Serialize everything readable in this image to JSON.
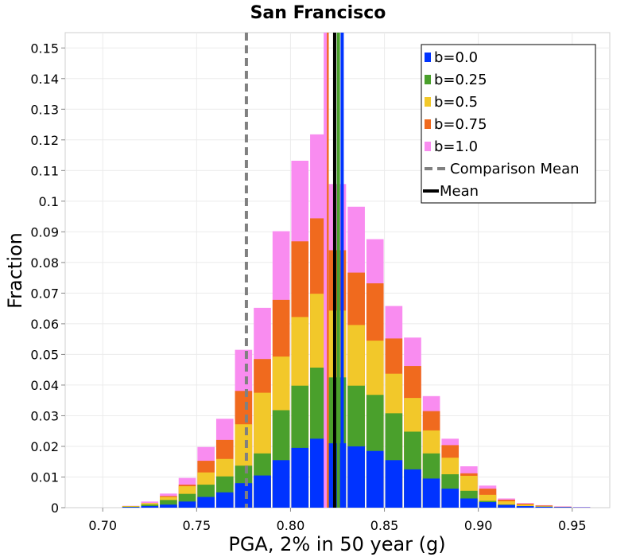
{
  "chart_data": {
    "type": "bar",
    "title": "San Francisco",
    "xlabel": "PGA, 2% in 50 year (g)",
    "ylabel": "Fraction",
    "xlim": [
      0.68,
      0.97
    ],
    "ylim": [
      0,
      0.155
    ],
    "bin_width": 0.01,
    "grid": true,
    "legend_position": "top-right",
    "x_ticks": [
      {
        "value": 0.7,
        "label": "0.70"
      },
      {
        "value": 0.75,
        "label": "0.75"
      },
      {
        "value": 0.8,
        "label": "0.80"
      },
      {
        "value": 0.85,
        "label": "0.85"
      },
      {
        "value": 0.9,
        "label": "0.90"
      },
      {
        "value": 0.95,
        "label": "0.95"
      }
    ],
    "y_ticks": [
      {
        "value": 0,
        "label": "0"
      },
      {
        "value": 0.01,
        "label": "0.01"
      },
      {
        "value": 0.02,
        "label": "0.02"
      },
      {
        "value": 0.03,
        "label": "0.03"
      },
      {
        "value": 0.04,
        "label": "0.04"
      },
      {
        "value": 0.05,
        "label": "0.05"
      },
      {
        "value": 0.06,
        "label": "0.06"
      },
      {
        "value": 0.07,
        "label": "0.07"
      },
      {
        "value": 0.08,
        "label": "0.08"
      },
      {
        "value": 0.09,
        "label": "0.09"
      },
      {
        "value": 0.1,
        "label": "0.1"
      },
      {
        "value": 0.11,
        "label": "0.11"
      },
      {
        "value": 0.12,
        "label": "0.12"
      },
      {
        "value": 0.13,
        "label": "0.13"
      },
      {
        "value": 0.14,
        "label": "0.14"
      },
      {
        "value": 0.15,
        "label": "0.15"
      }
    ],
    "bin_centers": [
      0.705,
      0.715,
      0.725,
      0.735,
      0.745,
      0.755,
      0.765,
      0.775,
      0.785,
      0.795,
      0.805,
      0.815,
      0.825,
      0.835,
      0.845,
      0.855,
      0.865,
      0.875,
      0.885,
      0.895,
      0.905,
      0.915,
      0.925,
      0.935,
      0.945,
      0.955,
      0.965
    ],
    "series": [
      {
        "name": "b=0.0",
        "color": "#0033ff",
        "values": [
          0.0,
          0.0002,
          0.0005,
          0.001,
          0.002,
          0.0035,
          0.005,
          0.008,
          0.0105,
          0.0155,
          0.0195,
          0.0225,
          0.021,
          0.02,
          0.0185,
          0.0155,
          0.0125,
          0.0095,
          0.0062,
          0.003,
          0.0018,
          0.0009,
          0.0005,
          0.0003,
          0.0002,
          0.0001,
          0.0
        ]
      },
      {
        "name": "b=0.25",
        "color": "#4aa02c",
        "values": [
          0.0,
          0.0003,
          0.001,
          0.0025,
          0.0045,
          0.0075,
          0.0102,
          0.0137,
          0.0177,
          0.0318,
          0.0398,
          0.0457,
          0.0425,
          0.0398,
          0.0368,
          0.0308,
          0.0248,
          0.0177,
          0.0109,
          0.0055,
          0.0022,
          0.001,
          0.0005,
          0.0003,
          0.0001,
          0.0,
          0.0
        ]
      },
      {
        "name": "b=0.5",
        "color": "#f2c82a",
        "values": [
          0.0,
          0.0005,
          0.0015,
          0.0035,
          0.007,
          0.0115,
          0.0159,
          0.0272,
          0.0375,
          0.0493,
          0.0622,
          0.0698,
          0.0643,
          0.0596,
          0.0545,
          0.0437,
          0.0358,
          0.0252,
          0.0163,
          0.0104,
          0.0042,
          0.0021,
          0.001,
          0.0005,
          0.0002,
          0.0001,
          0.0
        ]
      },
      {
        "name": "b=0.75",
        "color": "#f06a1e",
        "values": [
          0.0,
          0.0005,
          0.0012,
          0.0038,
          0.0075,
          0.0153,
          0.0221,
          0.0381,
          0.0485,
          0.0678,
          0.0869,
          0.0944,
          0.084,
          0.0767,
          0.0732,
          0.0552,
          0.0462,
          0.0315,
          0.0204,
          0.0112,
          0.0062,
          0.0026,
          0.0013,
          0.0007,
          0.0003,
          0.0001,
          0.0
        ]
      },
      {
        "name": "b=1.0",
        "color": "#f98cf0",
        "values": [
          0.0,
          0.0006,
          0.002,
          0.0046,
          0.0097,
          0.0198,
          0.029,
          0.0515,
          0.0652,
          0.0902,
          0.1132,
          0.1218,
          0.1056,
          0.0982,
          0.0876,
          0.0658,
          0.0555,
          0.0364,
          0.0225,
          0.0135,
          0.0072,
          0.003,
          0.0015,
          0.0008,
          0.0004,
          0.0002,
          0.0
        ]
      }
    ],
    "mean_lines": [
      {
        "series": "b=0.0",
        "x": 0.8275,
        "color": "#0033ff"
      },
      {
        "series": "b=0.25",
        "x": 0.8255,
        "color": "#4aa02c"
      },
      {
        "series": "b=0.5",
        "x": 0.8235,
        "color": "#f2c82a"
      },
      {
        "series": "b=0.75",
        "x": 0.8195,
        "color": "#f06a1e"
      },
      {
        "series": "b=1.0",
        "x": 0.8185,
        "color": "#f98cf0"
      }
    ],
    "mean": {
      "x": 0.8235,
      "color": "#000000"
    },
    "comparison_mean": {
      "x": 0.7765,
      "color": "#808080"
    },
    "legend": [
      {
        "label": "b=0.0",
        "kind": "box",
        "color": "#0033ff"
      },
      {
        "label": "b=0.25",
        "kind": "box",
        "color": "#4aa02c"
      },
      {
        "label": "b=0.5",
        "kind": "box",
        "color": "#f2c82a"
      },
      {
        "label": "b=0.75",
        "kind": "box",
        "color": "#f06a1e"
      },
      {
        "label": "b=1.0",
        "kind": "box",
        "color": "#f98cf0"
      },
      {
        "label": "Comparison Mean",
        "kind": "dash",
        "color": "#808080"
      },
      {
        "label": "Mean",
        "kind": "line",
        "color": "#000000"
      }
    ]
  }
}
